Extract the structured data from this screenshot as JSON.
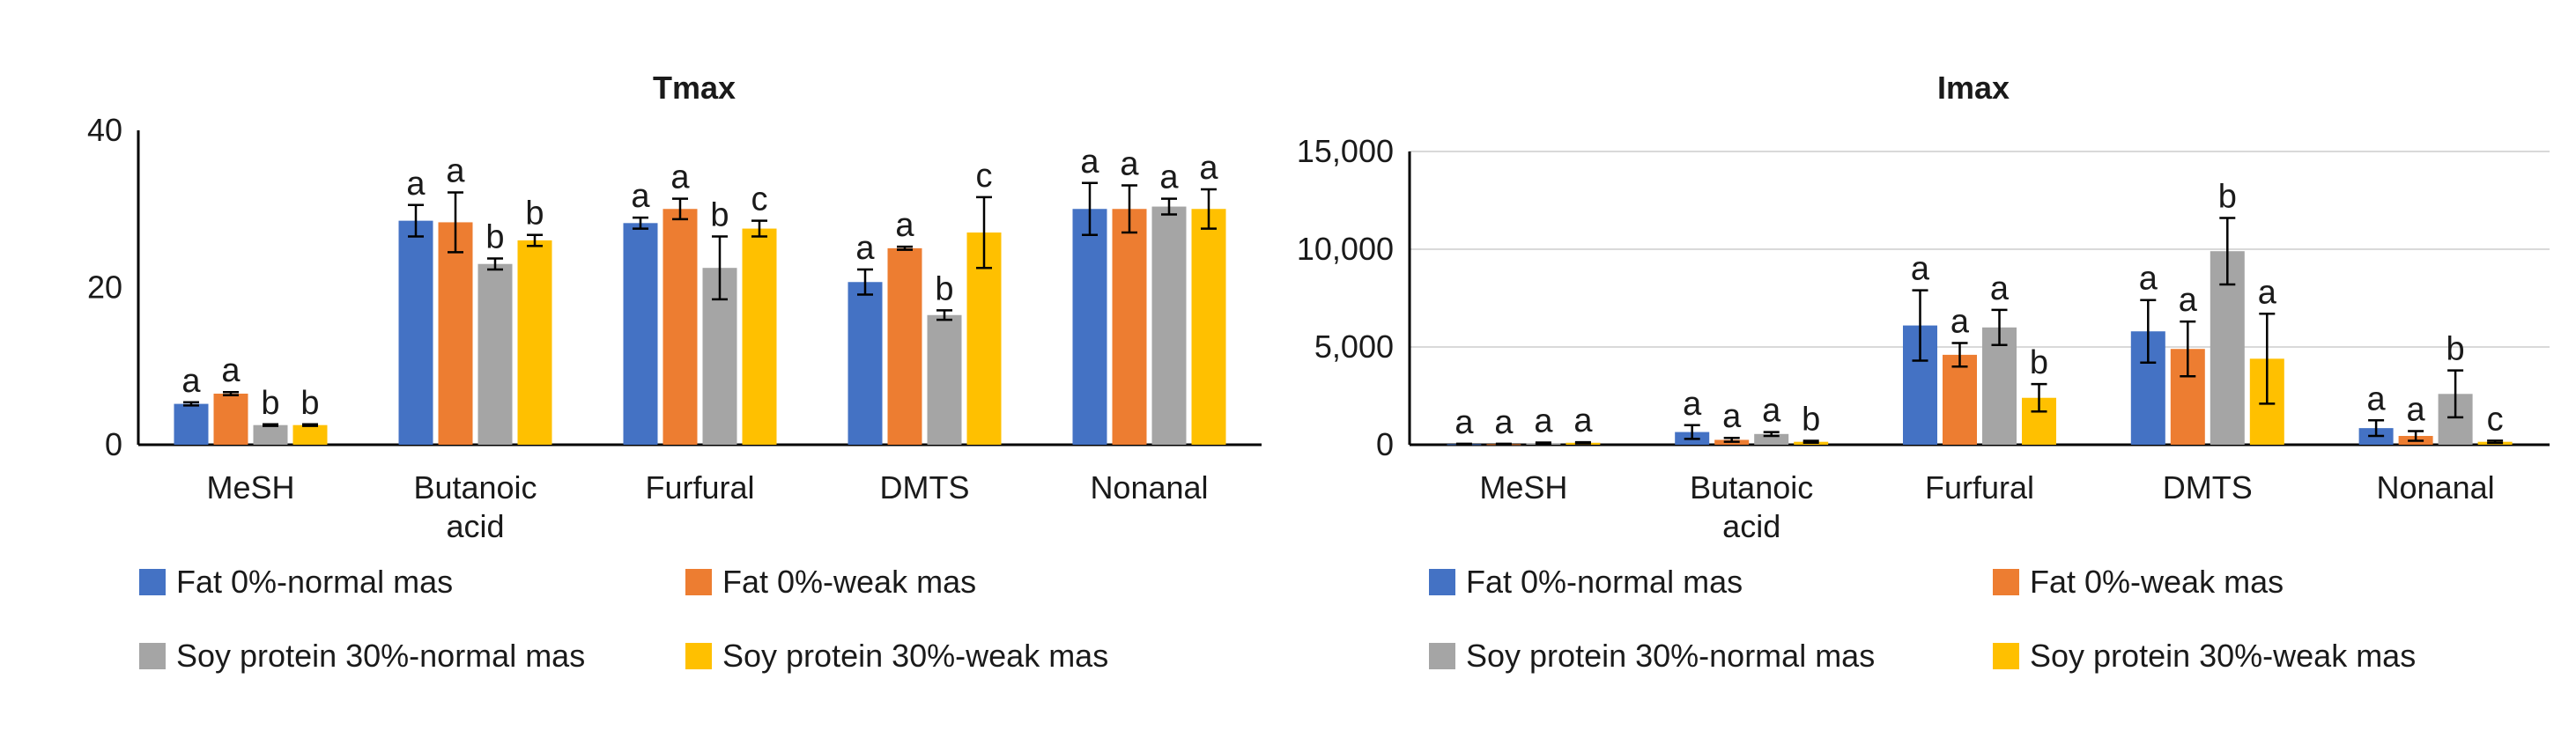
{
  "chart_data": [
    {
      "type": "bar",
      "title": "Tmax",
      "xlabel": "",
      "ylabel": "",
      "ylim": [
        0,
        40
      ],
      "yticks": [
        0,
        20,
        40
      ],
      "ytick_labels": [
        "0",
        "20",
        "40"
      ],
      "categories": [
        [
          "MeSH"
        ],
        [
          "Butanoic",
          "acid"
        ],
        [
          "Furfural"
        ],
        [
          "DMTS"
        ],
        [
          "Nonanal"
        ]
      ],
      "series": [
        {
          "name": "Fat 0%-normal mas",
          "color": "#4472C4",
          "values": [
            5.2,
            28.5,
            28.2,
            20.7,
            30.0
          ],
          "errors": [
            0.2,
            2.0,
            0.7,
            1.6,
            3.3
          ],
          "letters": [
            "a",
            "a",
            "a",
            "a",
            "a"
          ]
        },
        {
          "name": "Fat 0%-weak mas",
          "color": "#ED7D31",
          "values": [
            6.5,
            28.3,
            30.0,
            25.0,
            30.0
          ],
          "errors": [
            0.2,
            3.8,
            1.3,
            0.2,
            3.0
          ],
          "letters": [
            "a",
            "a",
            "a",
            "a",
            "a"
          ]
        },
        {
          "name": "Soy protein 30%-normal mas",
          "color": "#A5A5A5",
          "values": [
            2.5,
            23.0,
            22.5,
            16.5,
            30.3
          ],
          "errors": [
            0.1,
            0.7,
            4.0,
            0.6,
            1.0
          ],
          "letters": [
            "b",
            "b",
            "b",
            "b",
            "a"
          ]
        },
        {
          "name": "Soy protein 30%-weak mas",
          "color": "#FFC000",
          "values": [
            2.5,
            26.0,
            27.5,
            27.0,
            30.0
          ],
          "errors": [
            0.1,
            0.7,
            1.0,
            4.5,
            2.5
          ],
          "letters": [
            "b",
            "b",
            "c",
            "c",
            "a"
          ]
        }
      ]
    },
    {
      "type": "bar",
      "title": "Imax",
      "xlabel": "",
      "ylabel": "",
      "ylim": [
        0,
        15000
      ],
      "yticks": [
        0,
        5000,
        10000,
        15000
      ],
      "ytick_labels": [
        "0",
        "5,000",
        "10,000",
        "15,000"
      ],
      "categories": [
        [
          "MeSH"
        ],
        [
          "Butanoic",
          "acid"
        ],
        [
          "Furfural"
        ],
        [
          "DMTS"
        ],
        [
          "Nonanal"
        ]
      ],
      "series": [
        {
          "name": "Fat 0%-normal mas",
          "color": "#4472C4",
          "values": [
            30,
            650,
            6100,
            5800,
            850
          ],
          "errors": [
            20,
            350,
            1800,
            1600,
            400
          ],
          "letters": [
            "a",
            "a",
            "a",
            "a",
            "a"
          ]
        },
        {
          "name": "Fat 0%-weak mas",
          "color": "#ED7D31",
          "values": [
            30,
            250,
            4600,
            4900,
            450
          ],
          "errors": [
            20,
            100,
            600,
            1400,
            250
          ],
          "letters": [
            "a",
            "a",
            "a",
            "a",
            "a"
          ]
        },
        {
          "name": "Soy protein 30%-normal mas",
          "color": "#A5A5A5",
          "values": [
            80,
            550,
            6000,
            9900,
            2600
          ],
          "errors": [
            30,
            100,
            900,
            1700,
            1200
          ],
          "letters": [
            "a",
            "a",
            "a",
            "b",
            "b"
          ]
        },
        {
          "name": "Soy protein 30%-weak mas",
          "color": "#FFC000",
          "values": [
            100,
            150,
            2400,
            4400,
            150
          ],
          "errors": [
            30,
            50,
            700,
            2300,
            60
          ],
          "letters": [
            "a",
            "b",
            "b",
            "a",
            "c"
          ]
        }
      ]
    }
  ]
}
